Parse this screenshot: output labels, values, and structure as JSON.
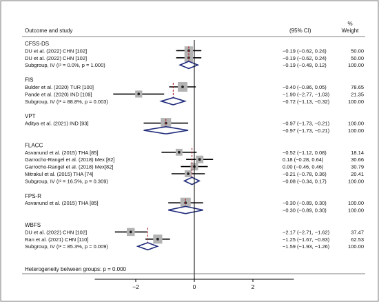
{
  "chart_data": {
    "type": "forest",
    "header": {
      "outcome_study": "Outcome and study",
      "ci": "(95% CI)",
      "weight_line1": "%",
      "weight_line2": "Weight"
    },
    "xaxis": {
      "ticks": [
        -2,
        0,
        2
      ],
      "range": [
        -3.4,
        3.4
      ],
      "reference_line": 0
    },
    "groups": [
      {
        "name": "CFSS-DS",
        "studies": [
          {
            "label": "DU et al. (2022) CHN [102]",
            "est": -0.19,
            "lo": -0.62,
            "hi": 0.24,
            "ci_text": "−0.19 (−0.62, 0.24)",
            "weight": "50.00"
          },
          {
            "label": "DU et al. (2022) CHN [102]",
            "est": -0.19,
            "lo": -0.62,
            "hi": 0.24,
            "ci_text": "−0.19 (−0.62, 0.24)",
            "weight": "50.00"
          }
        ],
        "subgroup": {
          "label": "Subgroup, IV (I² = 0.0%, p = 1.000)",
          "est": -0.19,
          "lo": -0.49,
          "hi": 0.12,
          "ci_text": "−0.19 (−0.49, 0.12)",
          "weight": "100.00"
        }
      },
      {
        "name": "FIS",
        "studies": [
          {
            "label": "Bulder et al. (2020) TUR [100]",
            "est": -0.4,
            "lo": -0.86,
            "hi": 0.05,
            "ci_text": "−0.40 (−0.86, 0.05)",
            "weight": "78.65"
          },
          {
            "label": "Pande et al. (2020) IND [109]",
            "est": -1.9,
            "lo": -2.77,
            "hi": -1.03,
            "ci_text": "−1.90 (−2.77, −1.03)",
            "weight": "21.35"
          }
        ],
        "subgroup": {
          "label": "Subgroup, IV (I² = 88.8%, p = 0.003)",
          "est": -0.72,
          "lo": -1.13,
          "hi": -0.32,
          "ci_text": "−0.72 (−1.13, −0.32)",
          "weight": "100.00"
        }
      },
      {
        "name": "VPT",
        "studies": [
          {
            "label": "Aditya et al. (2021) IND [93]",
            "est": -0.97,
            "lo": -1.73,
            "hi": -0.21,
            "ci_text": "−0.97 (−1.73, −0.21)",
            "weight": "100.00"
          }
        ],
        "subgroup": {
          "label": "",
          "est": -0.97,
          "lo": -1.73,
          "hi": -0.21,
          "ci_text": "−0.97 (−1.73, −0.21)",
          "weight": "100.00"
        }
      },
      {
        "name": "FLACC",
        "studies": [
          {
            "label": "Asvanund et al. (2015) THA [85]",
            "est": -0.52,
            "lo": -1.12,
            "hi": 0.08,
            "ci_text": "−0.52 (−1.12, 0.08)",
            "weight": "18.14"
          },
          {
            "label": "Garrocho-Rangel et al. (2018) Mex [82]",
            "est": 0.18,
            "lo": -0.28,
            "hi": 0.64,
            "ci_text": "0.18 (−0.28, 0.64)",
            "weight": "30.66"
          },
          {
            "label": "Garrocho-Rangel et al. (2018) Mex[82]",
            "est": 0.0,
            "lo": -0.46,
            "hi": 0.46,
            "ci_text": "0.00 (−0.46, 0.46)",
            "weight": "30.79"
          },
          {
            "label": "Mitrakul et al. (2015) THA [74]",
            "est": -0.21,
            "lo": -0.78,
            "hi": 0.36,
            "ci_text": "−0.21 (−0.78, 0.36)",
            "weight": "20.41"
          }
        ],
        "subgroup": {
          "label": "Subgroup, IV (I² = 16.5%, p = 0.309)",
          "est": -0.08,
          "lo": -0.34,
          "hi": 0.17,
          "ci_text": "−0.08 (−0.34, 0.17)",
          "weight": "100.00"
        }
      },
      {
        "name": "FPS-R",
        "studies": [
          {
            "label": "Asvanund et al. (2015) THA [85]",
            "est": -0.3,
            "lo": -0.89,
            "hi": 0.3,
            "ci_text": "−0.30 (−0.89, 0.30)",
            "weight": "100.00"
          }
        ],
        "subgroup": {
          "label": "",
          "est": -0.3,
          "lo": -0.89,
          "hi": 0.3,
          "ci_text": "−0.30 (−0.89, 0.30)",
          "weight": "100.00"
        }
      },
      {
        "name": "WBFS",
        "studies": [
          {
            "label": "DU et al. (2022) CHN [102]",
            "est": -2.17,
            "lo": -2.71,
            "hi": -1.62,
            "ci_text": "−2.17 (−2.71, −1.62)",
            "weight": "37.47"
          },
          {
            "label": "Ran et al. (2021) CHN [110]",
            "est": -1.25,
            "lo": -1.67,
            "hi": -0.83,
            "ci_text": "−1.25 (−1.67, −0.83)",
            "weight": "62.53"
          }
        ],
        "subgroup": {
          "label": "Subgroup, IV (I² = 85.3%, p = 0.009)",
          "est": -1.59,
          "lo": -1.93,
          "hi": -1.26,
          "ci_text": "−1.59 (−1.93, −1.26)",
          "weight": "100.00"
        }
      }
    ],
    "footer": "Heterogeneity between groups: p = 0.000",
    "colors": {
      "ci_line": "#000000",
      "box": "#b3b3b3",
      "point": "#222222",
      "diamond": "#1f2a7a",
      "dashed": "#b2222b",
      "reference": "#000000",
      "frame": "#777777"
    }
  }
}
